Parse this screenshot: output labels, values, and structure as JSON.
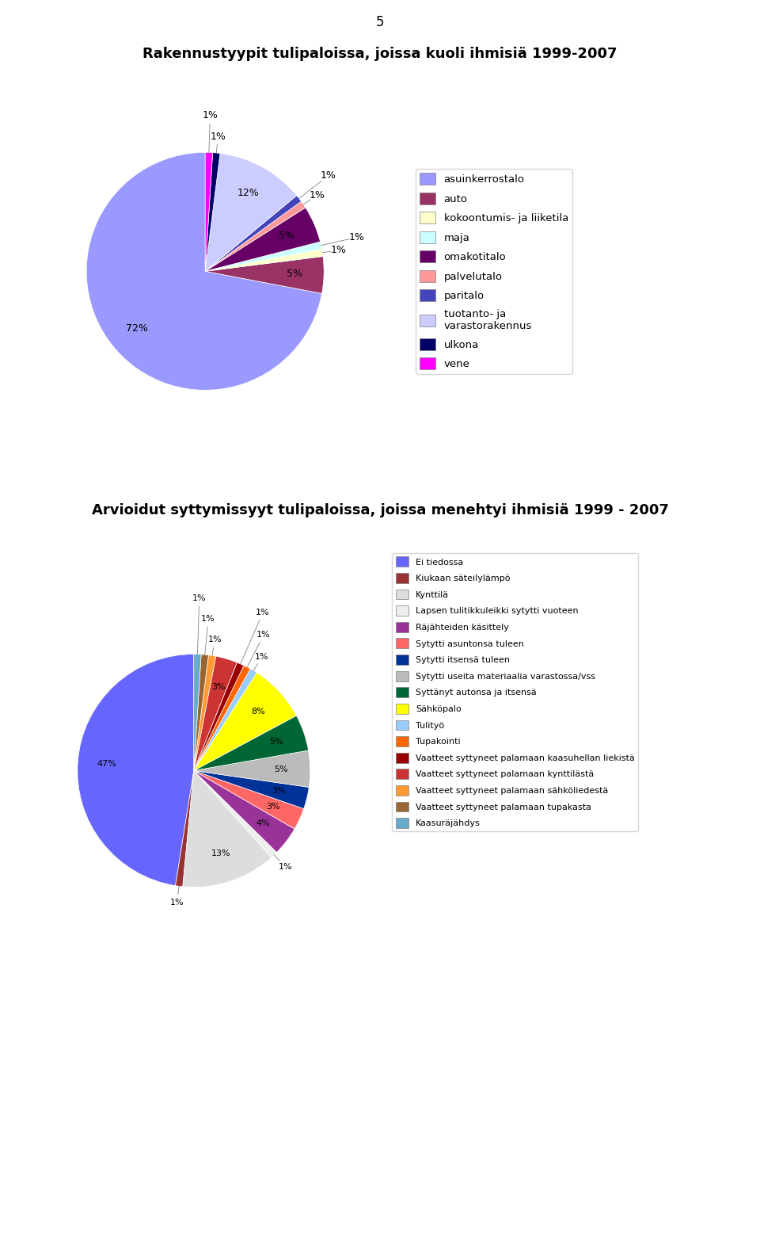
{
  "chart_data": [
    {
      "type": "pie",
      "title": "Rakennustyypit tulipaloissa, joissa kuoli ihmisiä 1999-2007",
      "annotations": [
        "5"
      ],
      "categories": [
        "asuinkerrostalo",
        "auto",
        "kokoontumis- ja liiketila",
        "maja",
        "omakotitalo",
        "palvelutalo",
        "paritalo",
        "tuotanto- ja\nvarastorakennus",
        "ulkona",
        "vene"
      ],
      "values": [
        72,
        5,
        1,
        1,
        5,
        1,
        1,
        12,
        1,
        1
      ],
      "value_labels": [
        "72%",
        "5%",
        "1%",
        "1%",
        "5%",
        "1%",
        "1%",
        "12%",
        "1%",
        "1%"
      ],
      "colors": [
        "#9999FF",
        "#993366",
        "#FFFFCC",
        "#CCFFFF",
        "#660066",
        "#FF9999",
        "#4444BB",
        "#CCCCFF",
        "#000066",
        "#FF00FF"
      ],
      "data_labels": true,
      "legend": "center left"
    },
    {
      "type": "pie",
      "title": "Arvioidut syttymissyyt tulipaloissa, joissa menehtyi ihmisiä 1999 - 2007",
      "categories": [
        "Ei tiedossa",
        "Kiukaan säteilylämpö",
        "Kynttilä",
        "Lapsen tulitikkuleikki sytytti vuoteen",
        "Räjähteiden käsittely",
        "Sytytti asuntonsa tuleen",
        "Sytytti itsensä tuleen",
        "Sytytti useita materiaalia varastossa/vss",
        "Syttänyt autonsa ja itsensä",
        "Sähköpalo",
        "Tulityö",
        "Tupakointi",
        "Vaatteet syttyneet palamaan kaasuhellan liekistä",
        "Vaatteet syttyneet palamaan kynttilästä",
        "Vaatteet syttyneet palamaan sähköliedestä",
        "Vaatteet syttyneet palamaan tupakasta",
        "Kaasuräjähdys"
      ],
      "values": [
        47,
        1,
        13,
        1,
        4,
        3,
        3,
        5,
        5,
        8,
        1,
        1,
        1,
        3,
        1,
        1,
        1
      ],
      "value_labels": [
        "47%",
        "1%",
        "13%",
        "1%",
        "4%",
        "3%",
        "3%",
        "5%",
        "5%",
        "8%",
        "1%",
        "1%",
        "1%",
        "3%",
        "1%",
        "1%",
        "1%"
      ],
      "colors": [
        "#6666FF",
        "#993333",
        "#DDDDDD",
        "#EEEEEE",
        "#993399",
        "#FF6666",
        "#003399",
        "#BBBBBB",
        "#006633",
        "#FFFF00",
        "#99CCFF",
        "#FF6600",
        "#990000",
        "#CC3333",
        "#FF9933",
        "#996633",
        "#66AACC"
      ],
      "data_labels": true,
      "legend": "upper left"
    }
  ]
}
